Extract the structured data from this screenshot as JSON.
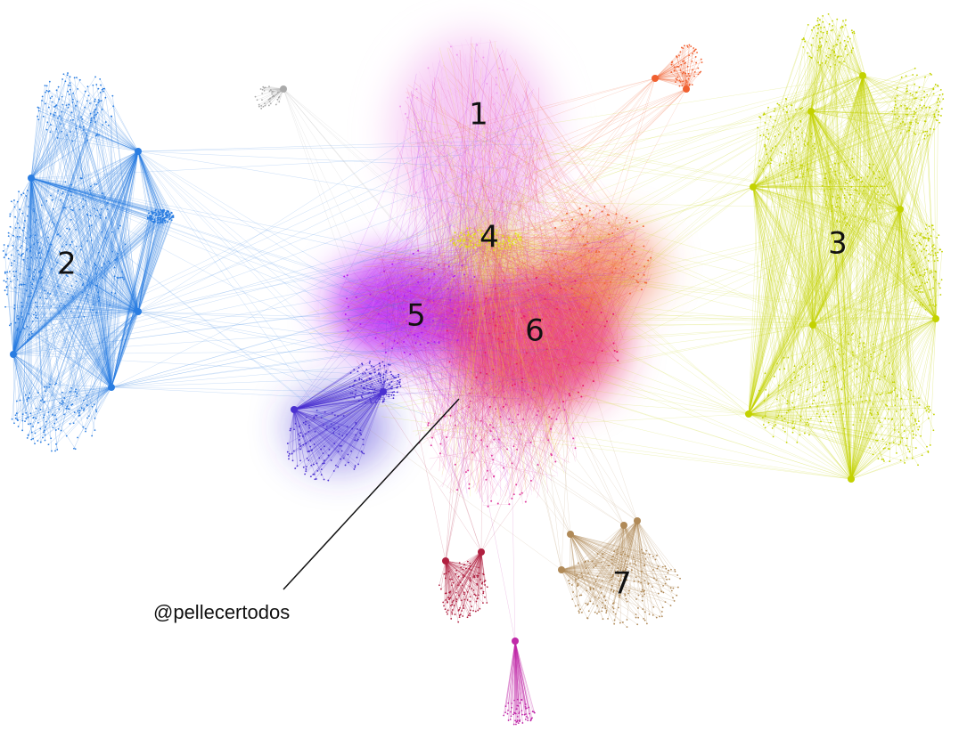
{
  "clusters": [
    {
      "label": "1"
    },
    {
      "label": "2"
    },
    {
      "label": "3"
    },
    {
      "label": "4"
    },
    {
      "label": "5"
    },
    {
      "label": "6"
    },
    {
      "label": "7"
    }
  ],
  "annotation": {
    "label": "@pellecertodos"
  }
}
